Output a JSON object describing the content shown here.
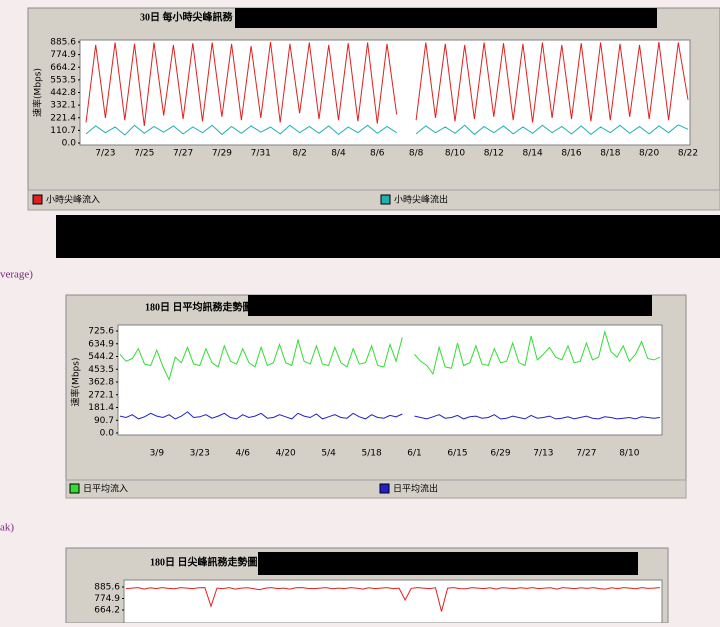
{
  "side_labels": [
    "verage)",
    "ak)"
  ],
  "chart_data": [
    {
      "type": "line",
      "title": "30日 每小時尖峰訊務",
      "y_label": "速率(Mbps)",
      "categories": [
        null,
        null,
        "7/23",
        null,
        null,
        null,
        "7/25",
        null,
        null,
        null,
        "7/27",
        null,
        null,
        null,
        "7/29",
        null,
        null,
        null,
        "7/31",
        null,
        null,
        null,
        "8/2",
        null,
        null,
        null,
        "8/4",
        null,
        null,
        null,
        "8/6",
        null,
        null,
        null,
        "8/8",
        null,
        null,
        null,
        "8/10",
        null,
        null,
        null,
        "8/12",
        null,
        null,
        null,
        "8/14",
        null,
        null,
        null,
        "8/16",
        null,
        null,
        null,
        "8/18",
        null,
        null,
        null,
        "8/20",
        null,
        null,
        null,
        "8/22"
      ],
      "series": [
        {
          "name": "小時尖峰流入",
          "color": "#e02020",
          "values": [
            180,
            860,
            220,
            880,
            200,
            870,
            150,
            880,
            240,
            860,
            210,
            875,
            190,
            880,
            230,
            870,
            200,
            850,
            220,
            885,
            180,
            870,
            260,
            880,
            210,
            860,
            200,
            875,
            190,
            880,
            170,
            870,
            250,
            null,
            200,
            880,
            220,
            870,
            190,
            860,
            210,
            880,
            230,
            875,
            200,
            870,
            180,
            880,
            220,
            860,
            210,
            875,
            190,
            880,
            200,
            870,
            230,
            860,
            210,
            885,
            200,
            880,
            380
          ]
        },
        {
          "name": "小時尖峰流出",
          "color": "#20b0b0",
          "values": [
            80,
            150,
            90,
            140,
            70,
            155,
            85,
            145,
            95,
            150,
            80,
            140,
            90,
            155,
            75,
            145,
            85,
            150,
            95,
            140,
            80,
            155,
            90,
            145,
            85,
            150,
            75,
            140,
            90,
            155,
            85,
            145,
            90,
            null,
            80,
            150,
            90,
            140,
            85,
            155,
            75,
            145,
            90,
            150,
            80,
            140,
            85,
            155,
            90,
            145,
            80,
            150,
            75,
            140,
            90,
            155,
            85,
            145,
            80,
            150,
            90,
            160,
            120
          ]
        }
      ],
      "ylim": [
        0,
        885.6
      ],
      "yticks": [
        {
          "value": 0,
          "label": "0.0"
        },
        110.7,
        221.4,
        332.1,
        442.8,
        553.5,
        664.2,
        774.9,
        885.6
      ],
      "grid": false
    },
    {
      "type": "line",
      "title": "180日 日平均訊務走勢圖",
      "y_label": "速率(Mbps)",
      "categories": [
        null,
        null,
        null,
        null,
        null,
        null,
        "3/9",
        null,
        null,
        null,
        null,
        null,
        null,
        "3/23",
        null,
        null,
        null,
        null,
        null,
        null,
        "4/6",
        null,
        null,
        null,
        null,
        null,
        null,
        "4/20",
        null,
        null,
        null,
        null,
        null,
        null,
        "5/4",
        null,
        null,
        null,
        null,
        null,
        null,
        "5/18",
        null,
        null,
        null,
        null,
        null,
        null,
        "6/1",
        null,
        null,
        null,
        null,
        null,
        null,
        "6/15",
        null,
        null,
        null,
        null,
        null,
        null,
        "6/29",
        null,
        null,
        null,
        null,
        null,
        null,
        "7/13",
        null,
        null,
        null,
        null,
        null,
        null,
        "7/27",
        null,
        null,
        null,
        null,
        null,
        null,
        "8/10",
        null,
        null,
        null,
        null,
        null
      ],
      "series": [
        {
          "name": "日平均流入",
          "color": "#33dd33",
          "values": [
            560,
            510,
            530,
            600,
            490,
            480,
            590,
            470,
            380,
            540,
            500,
            610,
            490,
            480,
            600,
            500,
            470,
            620,
            510,
            490,
            600,
            500,
            470,
            610,
            480,
            500,
            630,
            500,
            480,
            660,
            510,
            490,
            620,
            490,
            480,
            610,
            500,
            470,
            600,
            490,
            500,
            620,
            480,
            470,
            630,
            510,
            680,
            null,
            560,
            510,
            480,
            420,
            610,
            470,
            460,
            640,
            480,
            500,
            620,
            490,
            480,
            600,
            500,
            510,
            640,
            500,
            480,
            690,
            520,
            560,
            610,
            540,
            520,
            620,
            500,
            510,
            640,
            520,
            540,
            720,
            580,
            540,
            620,
            510,
            560,
            650,
            530,
            520,
            540
          ]
        },
        {
          "name": "日平均流出",
          "color": "#2020cc",
          "values": [
            120,
            110,
            130,
            100,
            115,
            140,
            120,
            110,
            130,
            100,
            120,
            150,
            110,
            115,
            130,
            105,
            120,
            140,
            110,
            100,
            130,
            110,
            120,
            140,
            105,
            110,
            130,
            115,
            100,
            140,
            120,
            110,
            135,
            100,
            115,
            130,
            110,
            105,
            140,
            115,
            100,
            130,
            110,
            105,
            125,
            115,
            135,
            null,
            120,
            110,
            100,
            115,
            130,
            105,
            110,
            125,
            100,
            115,
            120,
            105,
            110,
            130,
            100,
            105,
            120,
            110,
            100,
            125,
            105,
            110,
            120,
            100,
            105,
            115,
            100,
            110,
            120,
            105,
            100,
            115,
            110,
            100,
            105,
            110,
            100,
            115,
            110,
            105,
            110
          ]
        }
      ],
      "ylim": [
        0,
        725.6
      ],
      "yticks": [
        {
          "value": 0,
          "label": "0.0"
        },
        90.7,
        181.4,
        272.1,
        362.8,
        453.5,
        544.2,
        634.9,
        725.6
      ],
      "grid": false
    },
    {
      "type": "line",
      "title": "180日 日尖峰訊務走勢圖",
      "series": [
        {
          "color": "#e02020",
          "values": [
            870,
            875,
            880,
            865,
            878,
            870,
            880,
            872,
            868,
            880,
            875,
            870,
            878,
            880,
            700,
            875,
            870,
            880,
            865,
            875,
            878,
            870,
            860,
            875,
            880,
            870,
            875,
            865,
            878,
            880,
            872,
            870,
            875,
            880,
            868,
            875,
            870,
            880,
            875,
            865,
            878,
            870,
            875,
            880,
            870,
            875,
            760,
            872,
            880,
            875,
            870,
            878,
            650,
            875,
            880,
            870,
            868,
            880,
            875,
            870,
            878,
            865,
            880,
            875,
            870,
            878,
            872,
            880,
            870,
            875,
            878,
            865,
            880,
            875,
            870,
            878,
            872,
            880,
            870,
            865,
            878,
            870,
            880,
            875,
            868,
            880,
            872,
            875,
            880
          ]
        }
      ],
      "ylim": [
        0,
        885.6
      ],
      "yticks": [
        664.2,
        774.9,
        885.6
      ],
      "grid": false
    }
  ]
}
